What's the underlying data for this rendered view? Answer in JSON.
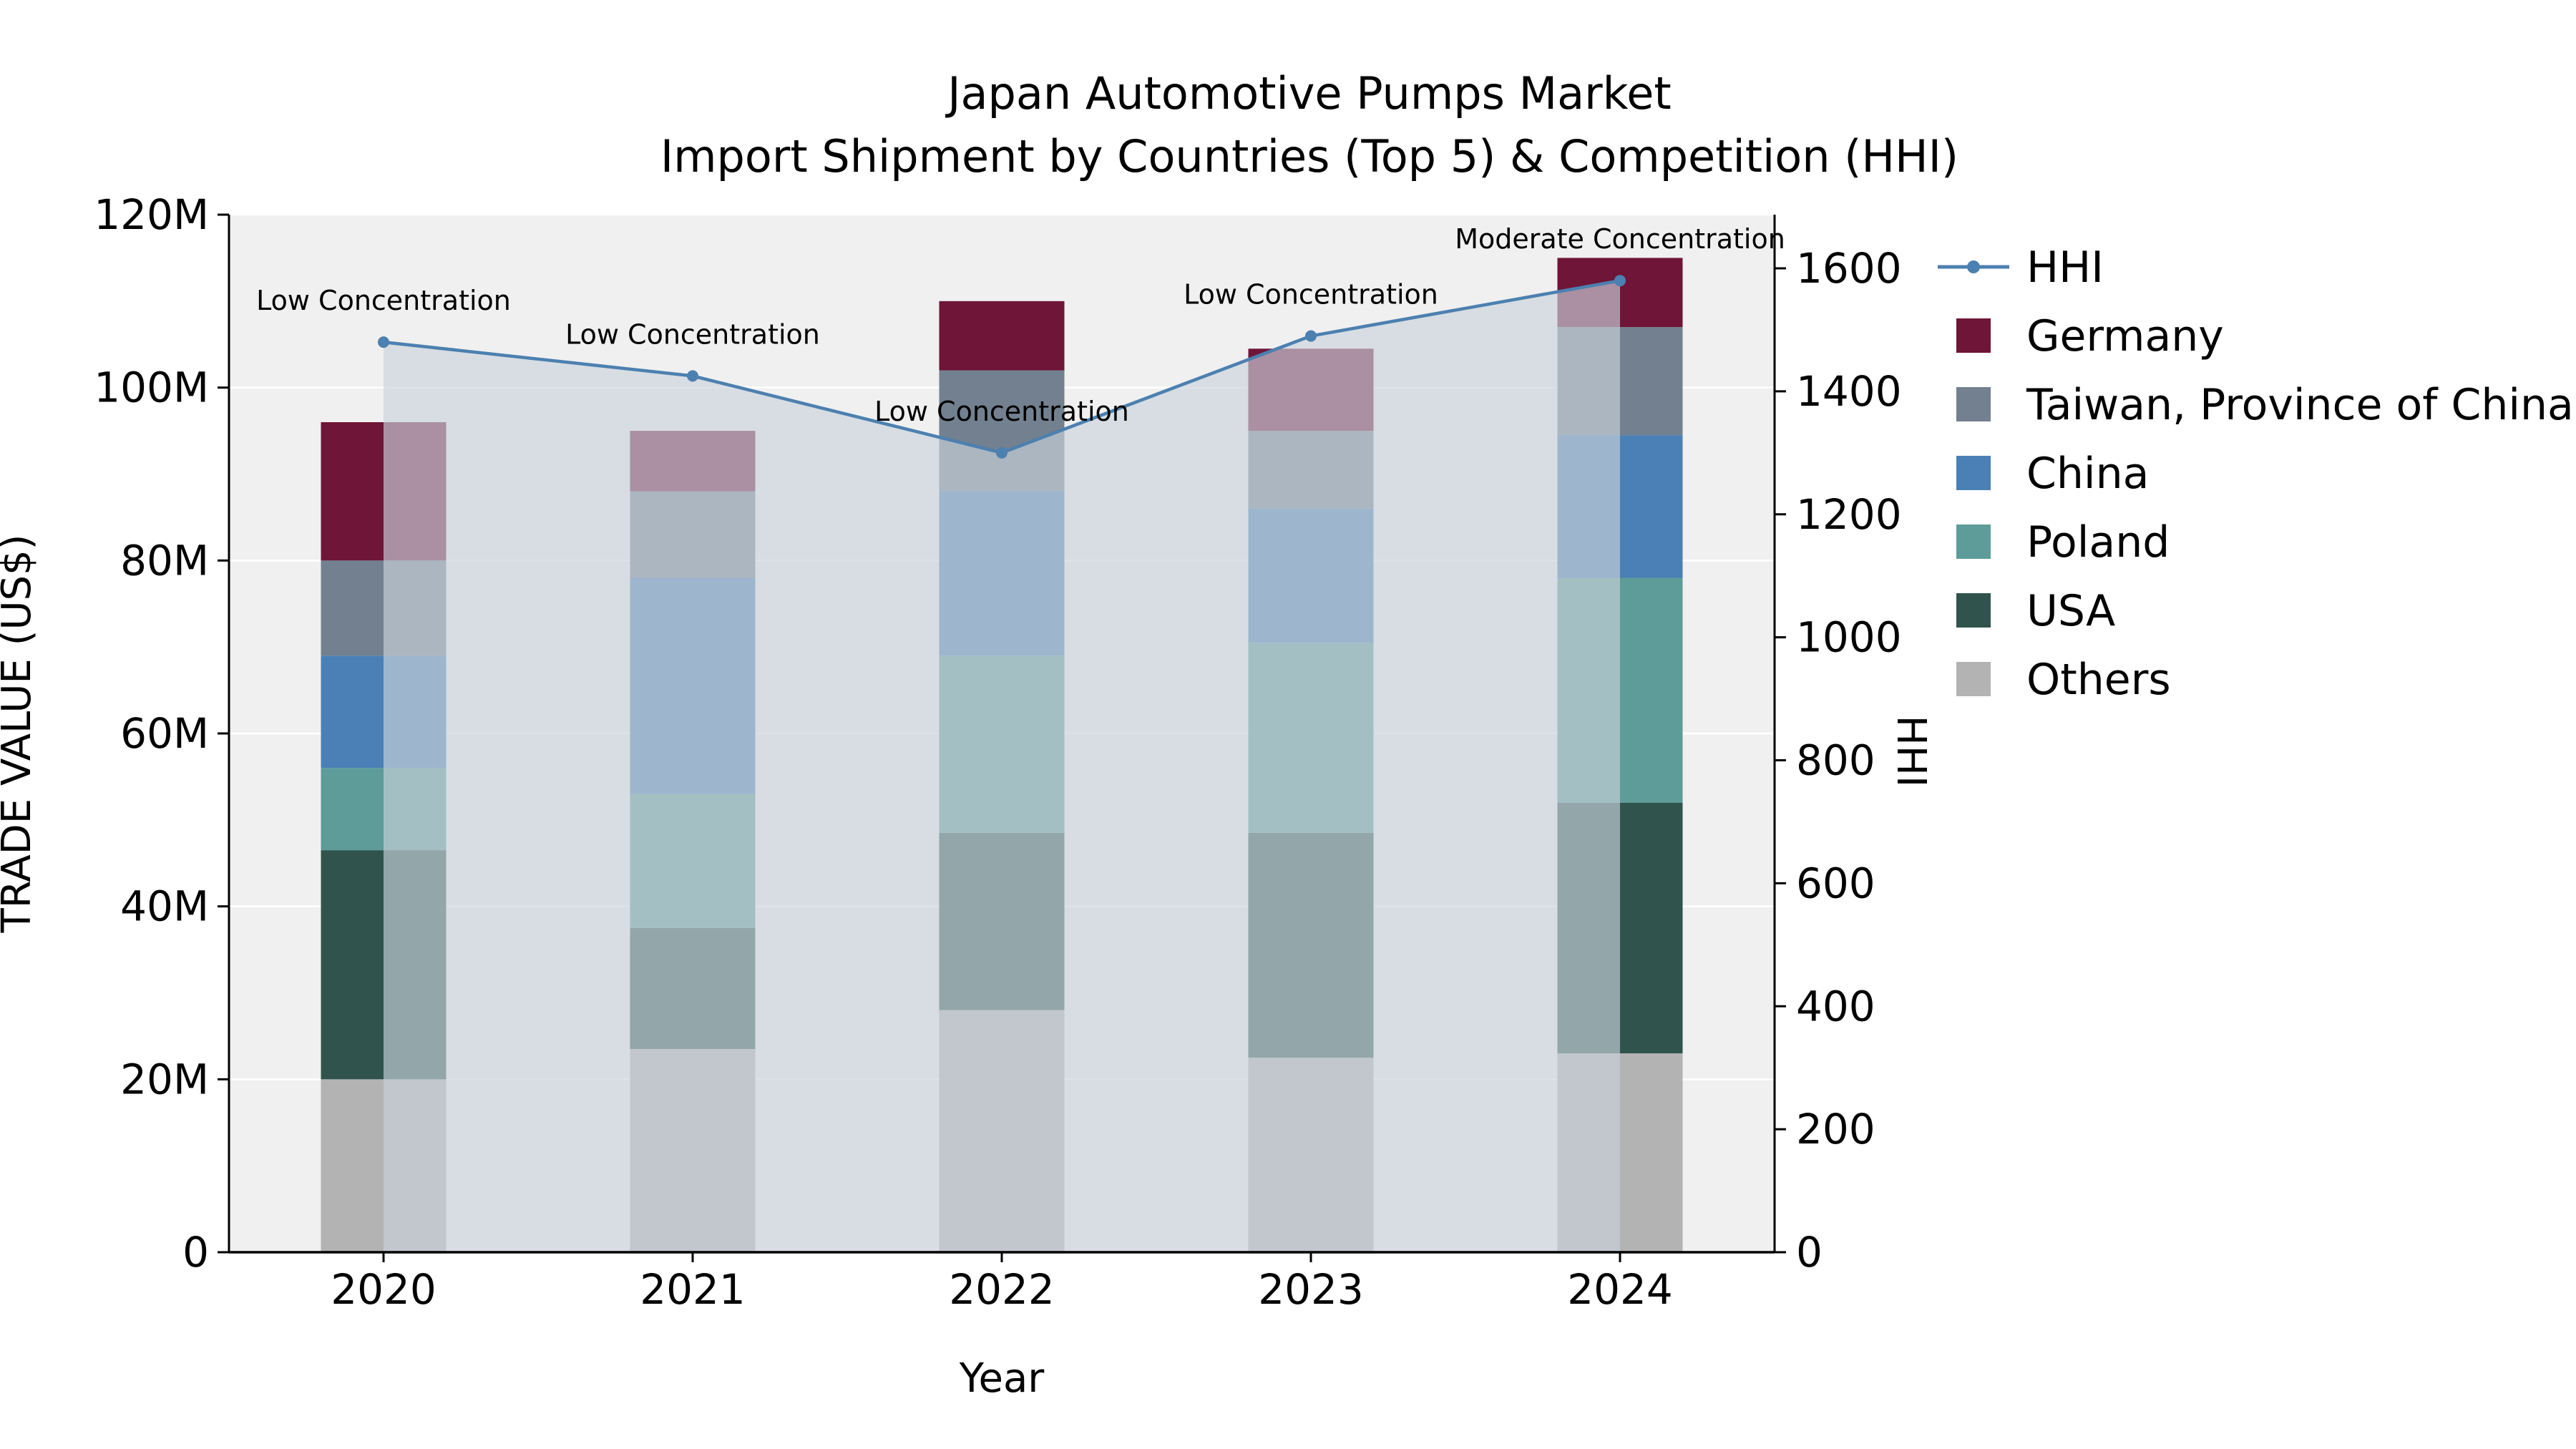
{
  "chart_data": {
    "type": "bar",
    "subtype": "stacked-bars-with-hhi-line-and-area",
    "title_line1": "Japan Automotive Pumps Market",
    "title_line2": "Import Shipment by Countries (Top 5) & Competition (HHI)",
    "xlabel": "Year",
    "ylabel_left": "TRADE VALUE (US$)",
    "ylabel_right": "HHI",
    "categories": [
      "2020",
      "2021",
      "2022",
      "2023",
      "2024"
    ],
    "value_unit": "million US$",
    "series": [
      {
        "name": "Others",
        "color": "#b3b3b3",
        "values": [
          20.0,
          23.5,
          28.0,
          22.5,
          23.0
        ]
      },
      {
        "name": "USA",
        "color": "#30544d",
        "values": [
          26.5,
          14.0,
          20.5,
          26.0,
          29.0
        ]
      },
      {
        "name": "Poland",
        "color": "#5d9c99",
        "values": [
          9.5,
          15.5,
          20.5,
          22.0,
          26.0
        ]
      },
      {
        "name": "China",
        "color": "#4a80b5",
        "values": [
          13.0,
          25.0,
          19.0,
          15.5,
          16.5
        ]
      },
      {
        "name": "Taiwan, Province of China",
        "color": "#72808f",
        "values": [
          11.0,
          10.0,
          14.0,
          9.0,
          12.5
        ]
      },
      {
        "name": "Germany",
        "color": "#6f1537",
        "values": [
          16.0,
          7.0,
          8.0,
          9.5,
          8.0
        ]
      }
    ],
    "bar_totals": [
      96.0,
      95.0,
      110.0,
      104.5,
      115.0
    ],
    "hhi_line": {
      "name": "HHI",
      "color": "#4c80b0",
      "values": [
        1480,
        1425,
        1300,
        1490,
        1580
      ],
      "annotations": [
        "Low Concentration",
        "Low Concentration",
        "Low Concentration",
        "Low Concentration",
        "Moderate Concentration"
      ]
    },
    "left_axis": {
      "ticks": [
        "0",
        "20M",
        "40M",
        "60M",
        "80M",
        "100M",
        "120M"
      ],
      "max": 120
    },
    "right_axis": {
      "ticks": [
        "0",
        "200",
        "400",
        "600",
        "800",
        "1000",
        "1200",
        "1400",
        "1600"
      ],
      "max": 1600
    },
    "legend": {
      "items": [
        "HHI",
        "Germany",
        "Taiwan, Province of China",
        "China",
        "Poland",
        "USA",
        "Others"
      ]
    },
    "style": {
      "plot_bg": "#f0f0f0",
      "grid_color": "#ffffff",
      "area_fill": "rgba(201,210,220,0.65)",
      "axis_color": "#000000",
      "annotation_color": "#111111",
      "text_color": "#000000"
    }
  }
}
